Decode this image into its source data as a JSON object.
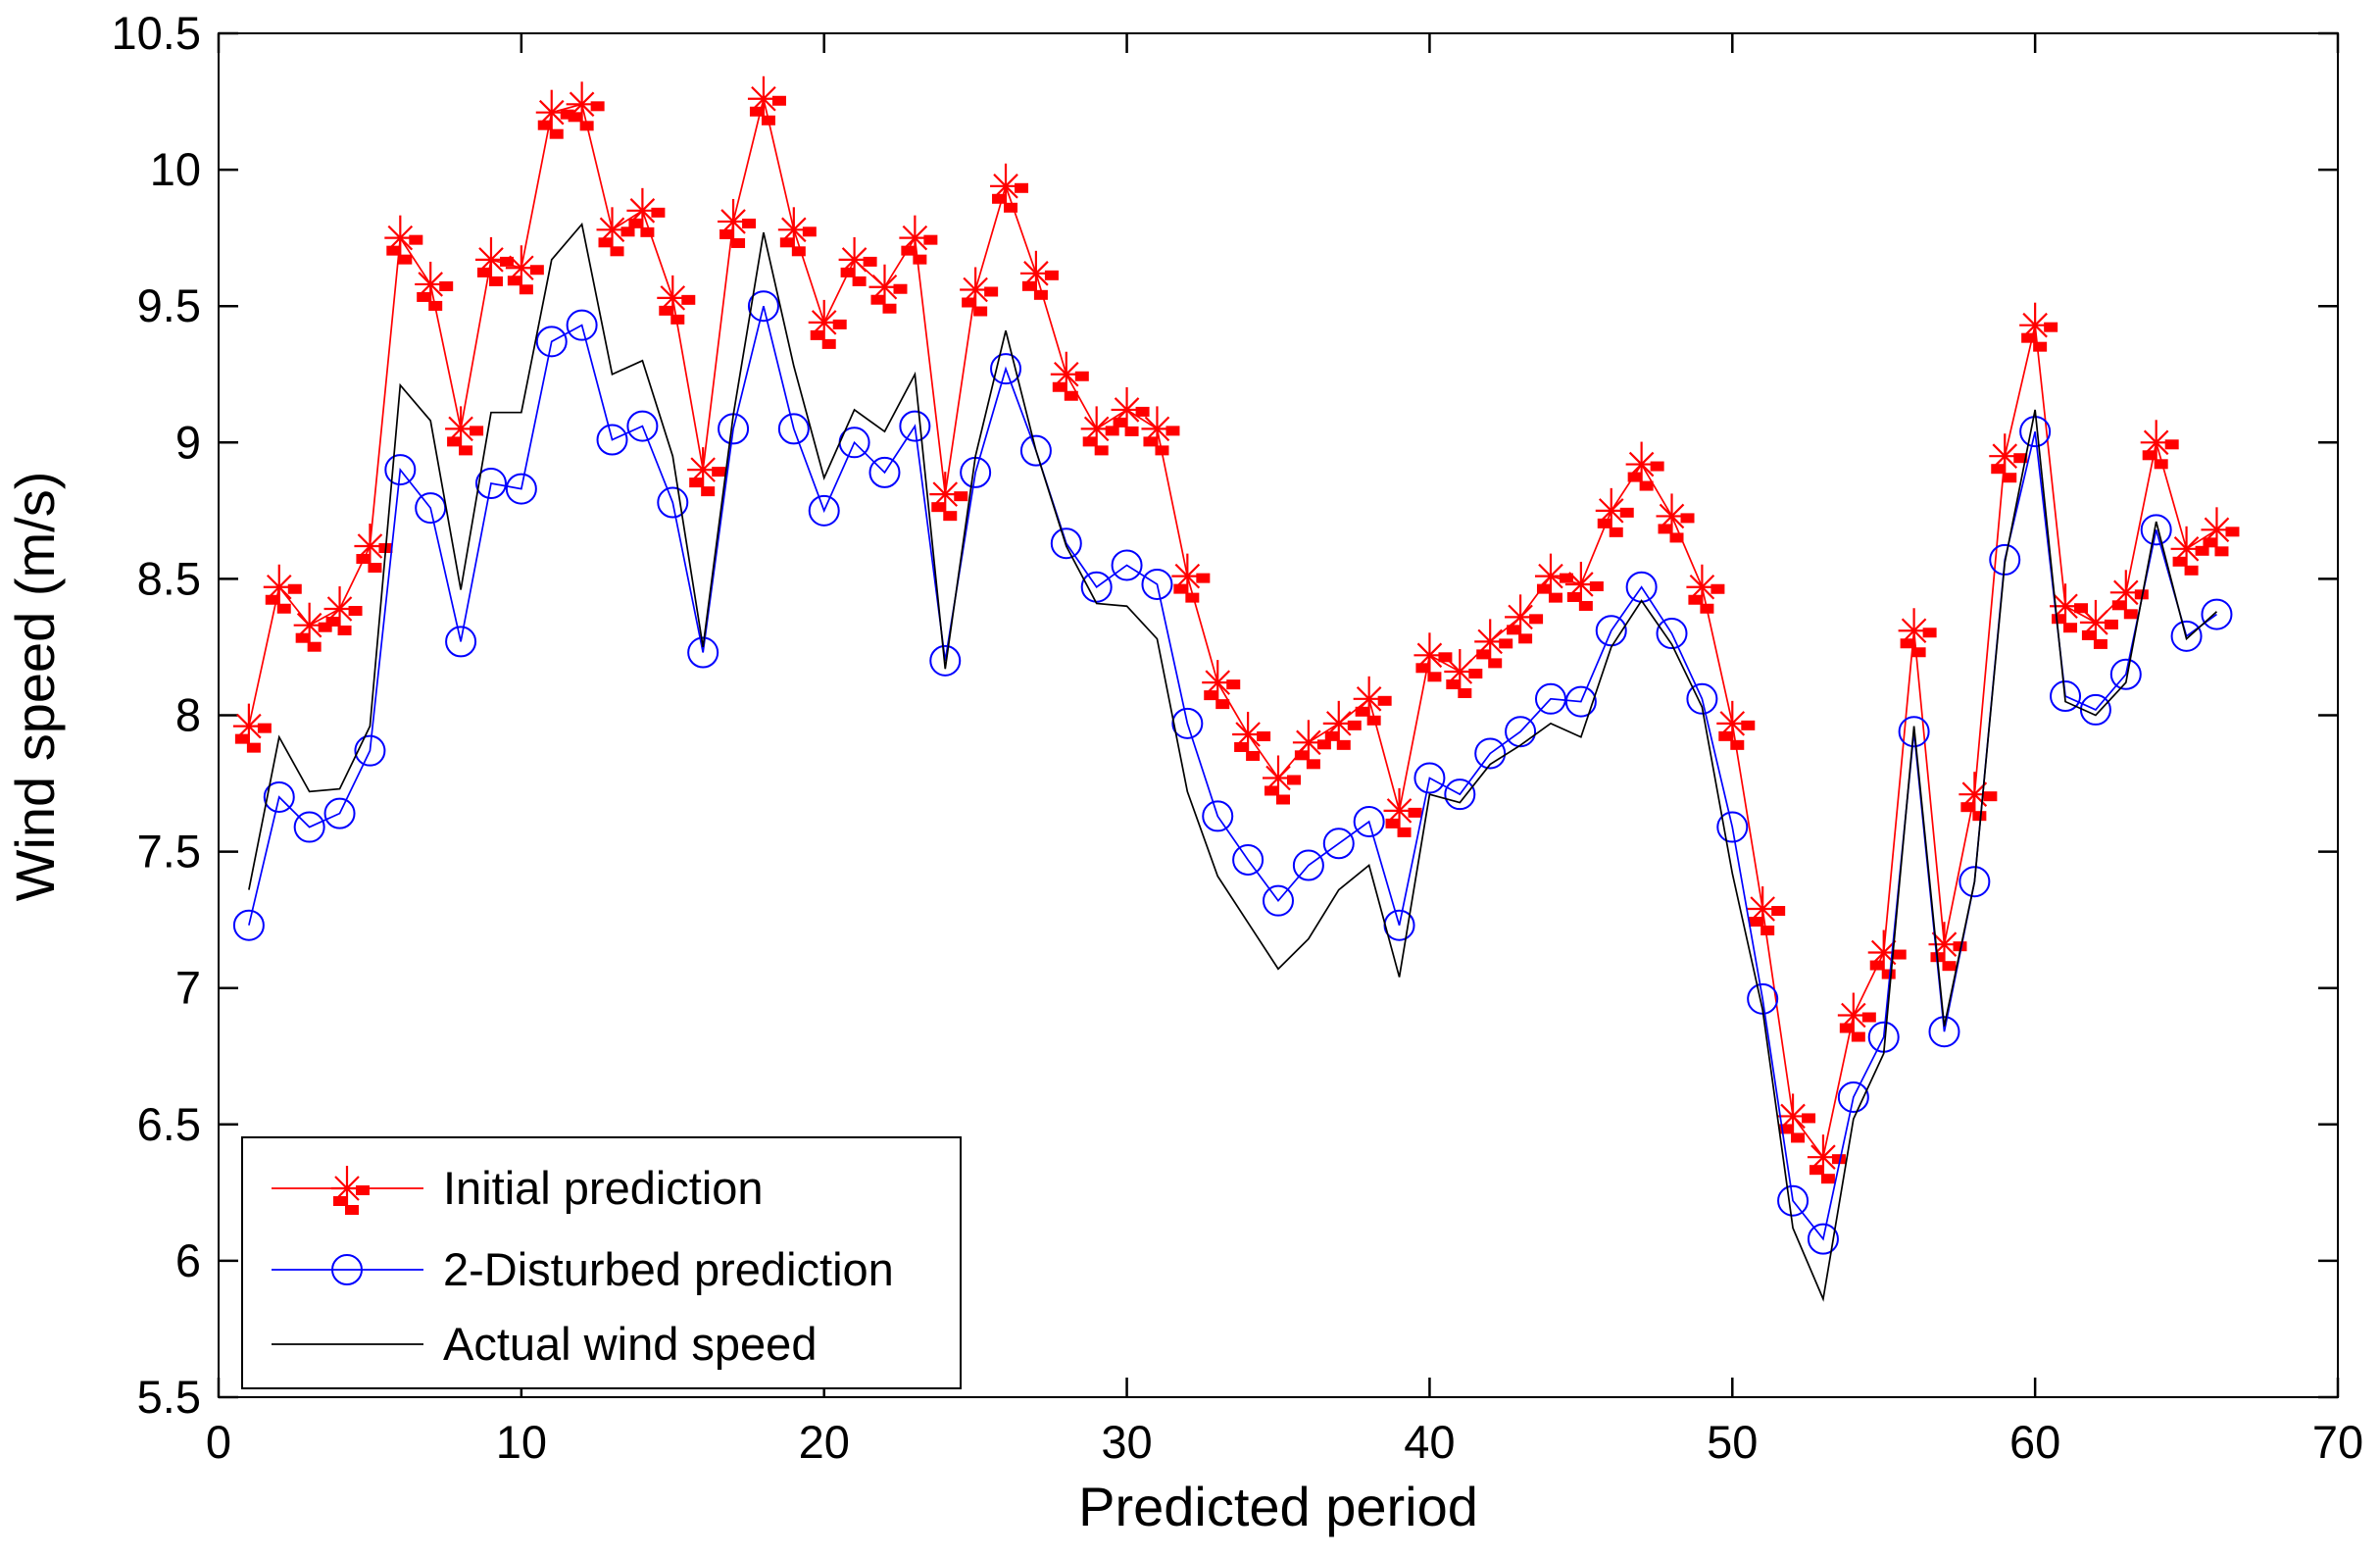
{
  "chart_data": {
    "type": "line",
    "title": "",
    "xlabel": "Predicted period",
    "ylabel": "Wind speed (m/s)",
    "xlim": [
      0,
      70
    ],
    "ylim": [
      5.5,
      10.5
    ],
    "xticks": [
      0,
      10,
      20,
      30,
      40,
      50,
      60,
      70
    ],
    "yticks": [
      5.5,
      6,
      6.5,
      7,
      7.5,
      8,
      8.5,
      9,
      9.5,
      10,
      10.5
    ],
    "xtick_labels": [
      "0",
      "10",
      "20",
      "30",
      "40",
      "50",
      "60",
      "70"
    ],
    "ytick_labels": [
      "5.5",
      "6",
      "6.5",
      "7",
      "7.5",
      "8",
      "8.5",
      "9",
      "9.5",
      "10",
      "10.5"
    ],
    "grid": false,
    "legend_position": "lower-left",
    "x": [
      1,
      2,
      3,
      4,
      5,
      6,
      7,
      8,
      9,
      10,
      11,
      12,
      13,
      14,
      15,
      16,
      17,
      18,
      19,
      20,
      21,
      22,
      23,
      24,
      25,
      26,
      27,
      28,
      29,
      30,
      31,
      32,
      33,
      34,
      35,
      36,
      37,
      38,
      39,
      40,
      41,
      42,
      43,
      44,
      45,
      46,
      47,
      48,
      49,
      50,
      51,
      52,
      53,
      54,
      55,
      56,
      57,
      58,
      59,
      60,
      61,
      62,
      63,
      64,
      65,
      66
    ],
    "series": [
      {
        "id": "initial-prediction",
        "name": "Initial prediction",
        "color": "#ff0000",
        "marker": "asterisk-with-dashes",
        "line_style": "solid",
        "values": [
          7.96,
          8.47,
          8.33,
          8.39,
          8.62,
          9.75,
          9.58,
          9.05,
          9.67,
          9.64,
          10.21,
          10.24,
          9.78,
          9.85,
          9.53,
          8.9,
          9.81,
          10.26,
          9.78,
          9.44,
          9.67,
          9.57,
          9.75,
          8.81,
          9.56,
          9.94,
          9.62,
          9.25,
          9.05,
          9.12,
          9.05,
          8.51,
          8.12,
          7.93,
          7.77,
          7.9,
          7.97,
          8.06,
          7.65,
          8.22,
          8.16,
          8.27,
          8.36,
          8.51,
          8.48,
          8.75,
          8.92,
          8.73,
          8.47,
          7.97,
          7.29,
          6.53,
          6.38,
          6.9,
          7.13,
          8.31,
          7.16,
          7.71,
          8.95,
          9.43,
          8.4,
          8.34,
          8.45,
          9.0,
          8.61,
          8.68
        ]
      },
      {
        "id": "disturbed-prediction",
        "name": "2-Disturbed prediction",
        "color": "#0000ff",
        "marker": "circle",
        "line_style": "solid",
        "values": [
          7.23,
          7.7,
          7.59,
          7.64,
          7.87,
          8.9,
          8.76,
          8.27,
          8.85,
          8.83,
          9.37,
          9.43,
          9.01,
          9.06,
          8.78,
          8.23,
          9.05,
          9.5,
          9.05,
          8.75,
          9.0,
          8.89,
          9.06,
          8.2,
          8.89,
          9.27,
          8.97,
          8.63,
          8.47,
          8.55,
          8.48,
          7.97,
          7.63,
          7.47,
          7.32,
          7.45,
          7.53,
          7.61,
          7.23,
          7.77,
          7.71,
          7.86,
          7.94,
          8.06,
          8.05,
          8.31,
          8.47,
          8.3,
          8.06,
          7.59,
          6.96,
          6.22,
          6.08,
          6.6,
          6.82,
          7.94,
          6.84,
          7.39,
          8.57,
          9.04,
          8.07,
          8.02,
          8.15,
          8.68,
          8.29,
          8.37
        ]
      },
      {
        "id": "actual-wind-speed",
        "name": "Actual wind speed",
        "color": "#000000",
        "marker": "none",
        "line_style": "solid",
        "values": [
          7.36,
          7.92,
          7.72,
          7.73,
          7.96,
          9.21,
          9.08,
          8.46,
          9.11,
          9.11,
          9.67,
          9.8,
          9.25,
          9.3,
          8.95,
          8.25,
          9.1,
          9.77,
          9.28,
          8.87,
          9.12,
          9.04,
          9.25,
          8.17,
          8.95,
          9.41,
          8.97,
          8.62,
          8.41,
          8.4,
          8.28,
          7.72,
          7.41,
          7.24,
          7.07,
          7.18,
          7.36,
          7.45,
          7.04,
          7.71,
          7.68,
          7.82,
          7.89,
          7.97,
          7.92,
          8.25,
          8.42,
          8.26,
          8.03,
          7.42,
          6.92,
          6.12,
          5.86,
          6.52,
          6.76,
          7.96,
          6.86,
          7.39,
          8.56,
          9.12,
          8.05,
          8.0,
          8.12,
          8.71,
          8.28,
          8.38
        ]
      }
    ]
  }
}
